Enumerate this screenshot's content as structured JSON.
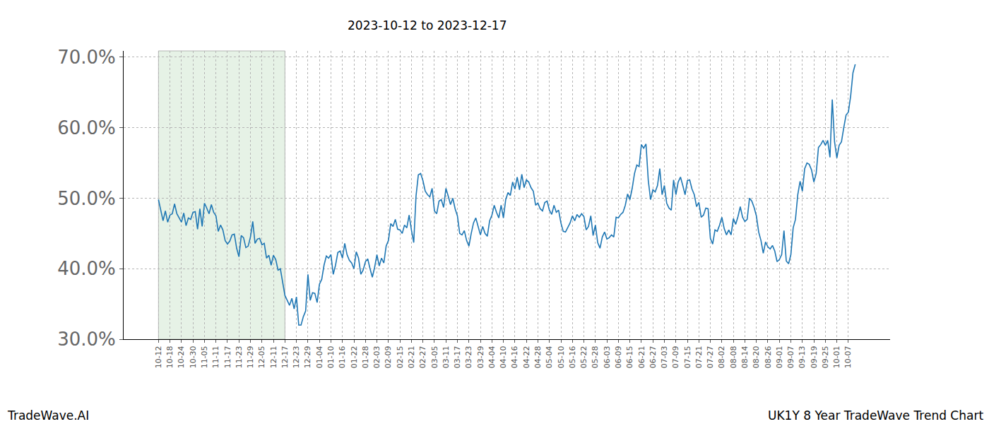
{
  "chart_data": {
    "type": "line",
    "title": "2023-10-12 to 2023-12-17",
    "annotations": [
      "TradeWave.AI",
      "UK1Y 8 Year TradeWave Trend Chart"
    ],
    "color": "#1f77b4",
    "grid": true,
    "highlight": {
      "from": "10-12",
      "to": "12-17"
    },
    "ylim": [
      30,
      70.9
    ],
    "yticks": [
      {
        "value": 30,
        "label": "30.0%"
      },
      {
        "value": 40,
        "label": "40.0%"
      },
      {
        "value": 50,
        "label": "50.0%"
      },
      {
        "value": 60,
        "label": "60.0%"
      },
      {
        "value": 70,
        "label": "70.0%"
      }
    ],
    "categories": [
      "10-12",
      null,
      null,
      null,
      null,
      "10-18",
      null,
      null,
      null,
      null,
      "10-24",
      null,
      null,
      null,
      null,
      "10-30",
      null,
      null,
      null,
      null,
      "11-05",
      null,
      null,
      null,
      null,
      "11-11",
      null,
      null,
      null,
      null,
      "11-17",
      null,
      null,
      null,
      null,
      "11-23",
      null,
      null,
      null,
      null,
      "11-29",
      null,
      null,
      null,
      null,
      "12-05",
      null,
      null,
      null,
      null,
      "12-11",
      null,
      null,
      null,
      null,
      "12-17",
      null,
      null,
      null,
      null,
      "12-23",
      null,
      null,
      null,
      null,
      "12-29",
      null,
      null,
      null,
      null,
      "01-04",
      null,
      null,
      null,
      null,
      "01-10",
      null,
      null,
      null,
      null,
      "01-16",
      null,
      null,
      null,
      null,
      "01-22",
      null,
      null,
      null,
      null,
      "01-28",
      null,
      null,
      null,
      null,
      "02-03",
      null,
      null,
      null,
      null,
      "02-09",
      null,
      null,
      null,
      null,
      "02-15",
      null,
      null,
      null,
      null,
      "02-21",
      null,
      null,
      null,
      null,
      "02-27",
      null,
      null,
      null,
      null,
      "03-05",
      null,
      null,
      null,
      null,
      "03-11",
      null,
      null,
      null,
      null,
      "03-17",
      null,
      null,
      null,
      null,
      "03-23",
      null,
      null,
      null,
      null,
      "03-29",
      null,
      null,
      null,
      null,
      "04-04",
      null,
      null,
      null,
      null,
      "04-10",
      null,
      null,
      null,
      null,
      "04-16",
      null,
      null,
      null,
      null,
      "04-22",
      null,
      null,
      null,
      null,
      "04-28",
      null,
      null,
      null,
      null,
      "05-04",
      null,
      null,
      null,
      null,
      "05-10",
      null,
      null,
      null,
      null,
      "05-16",
      null,
      null,
      null,
      null,
      "05-22",
      null,
      null,
      null,
      null,
      "05-28",
      null,
      null,
      null,
      null,
      "06-03",
      null,
      null,
      null,
      null,
      "06-09",
      null,
      null,
      null,
      null,
      "06-15",
      null,
      null,
      null,
      null,
      "06-21",
      null,
      null,
      null,
      null,
      "06-27",
      null,
      null,
      null,
      null,
      "07-03",
      null,
      null,
      null,
      null,
      "07-09",
      null,
      null,
      null,
      null,
      "07-15",
      null,
      null,
      null,
      null,
      "07-21",
      null,
      null,
      null,
      null,
      "07-27",
      null,
      null,
      null,
      null,
      "08-02",
      null,
      null,
      null,
      null,
      "08-08",
      null,
      null,
      null,
      null,
      "08-14",
      null,
      null,
      null,
      null,
      "08-20",
      null,
      null,
      null,
      null,
      "08-26",
      null,
      null,
      null,
      null,
      "09-01",
      null,
      null,
      null,
      null,
      "09-07",
      null,
      null,
      null,
      null,
      "09-13",
      null,
      null,
      null,
      null,
      "09-19",
      null,
      null,
      null,
      null,
      "09-25",
      null,
      null,
      null,
      null,
      "10-01",
      null,
      null,
      null,
      null,
      "10-07",
      null,
      null,
      null
    ],
    "values": [
      49.8,
      48.2,
      46.8,
      48.2,
      46.6,
      47.6,
      47.8,
      49.2,
      47.8,
      47.2,
      46.6,
      47.9,
      46.1,
      47.2,
      47.0,
      48.0,
      48.1,
      45.6,
      48.5,
      46.0,
      49.3,
      48.6,
      47.8,
      49.1,
      48.0,
      47.5,
      45.3,
      46.2,
      45.5,
      44.0,
      43.5,
      43.9,
      44.8,
      44.9,
      42.9,
      41.7,
      44.7,
      44.4,
      43.0,
      43.2,
      44.5,
      46.7,
      43.6,
      44.2,
      44.3,
      43.4,
      43.6,
      41.5,
      41.9,
      40.5,
      41.9,
      41.3,
      39.8,
      40.0,
      38.0,
      36.2,
      35.5,
      34.8,
      35.8,
      34.3,
      36.0,
      32.0,
      32.0,
      33.2,
      34.0,
      39.2,
      35.5,
      36.6,
      36.5,
      35.2,
      37.8,
      38.5,
      40.5,
      41.8,
      41.5,
      42.0,
      39.2,
      40.5,
      42.3,
      42.5,
      41.5,
      43.6,
      42.0,
      41.2,
      40.8,
      40.0,
      42.4,
      41.5,
      39.2,
      39.8,
      41.0,
      41.4,
      40.0,
      38.8,
      40.2,
      42.0,
      40.4,
      41.5,
      40.8,
      43.2,
      44.0,
      46.4,
      46.0,
      47.0,
      45.6,
      45.5,
      45.0,
      46.2,
      45.8,
      47.6,
      45.5,
      43.7,
      50.3,
      53.3,
      53.5,
      52.5,
      51.0,
      50.5,
      50.2,
      51.4,
      48.2,
      47.8,
      49.6,
      49.8,
      48.7,
      51.4,
      50.3,
      49.1,
      50.0,
      48.5,
      47.5,
      45.0,
      44.8,
      45.4,
      44.0,
      43.2,
      45.0,
      46.5,
      47.2,
      46.0,
      44.8,
      46.0,
      45.0,
      44.6,
      46.8,
      47.6,
      49.0,
      48.0,
      47.2,
      49.0,
      47.2,
      49.8,
      50.8,
      50.4,
      52.3,
      51.3,
      53.0,
      51.2,
      53.4,
      51.5,
      52.6,
      52.3,
      51.5,
      51.0,
      49.0,
      49.3,
      48.5,
      48.2,
      49.4,
      49.6,
      48.3,
      47.7,
      49.0,
      48.0,
      48.3,
      46.5,
      45.3,
      45.2,
      45.8,
      46.5,
      47.5,
      46.8,
      47.7,
      47.3,
      47.8,
      47.4,
      45.5,
      46.0,
      47.5,
      44.7,
      46.2,
      43.7,
      42.9,
      44.5,
      45.2,
      44.2,
      44.4,
      44.8,
      44.5,
      47.3,
      47.2,
      47.7,
      48.0,
      49.0,
      50.6,
      49.8,
      51.4,
      53.5,
      54.7,
      54.5,
      57.6,
      57.1,
      57.7,
      52.5,
      49.8,
      51.2,
      50.9,
      51.8,
      54.2,
      50.5,
      51.8,
      49.3,
      48.6,
      48.3,
      52.6,
      50.5,
      52.3,
      53.0,
      51.8,
      50.5,
      52.5,
      52.6,
      51.3,
      50.5,
      48.8,
      49.4,
      47.3,
      47.6,
      48.6,
      48.5,
      44.3,
      43.5,
      45.5,
      45.3,
      46.2,
      47.3,
      45.7,
      44.8,
      45.5,
      44.8,
      47.1,
      46.3,
      47.4,
      48.8,
      47.3,
      46.7,
      47.0,
      50.0,
      49.6,
      48.7,
      47.5,
      45.2,
      44.0,
      42.2,
      43.8,
      43.1,
      42.8,
      43.3,
      42.5,
      41.0,
      41.3,
      42.0,
      45.4,
      41.1,
      40.7,
      42.0,
      45.8,
      47.0,
      50.5,
      52.4,
      51.0,
      54.2,
      55.0,
      54.8,
      54.0,
      52.3,
      53.5,
      57.2,
      57.6,
      58.2,
      57.5,
      58.2,
      55.8,
      64.0,
      58.0,
      55.7,
      57.5,
      58.0,
      60.0,
      61.8,
      62.2,
      64.5,
      67.8,
      69.0
    ]
  }
}
